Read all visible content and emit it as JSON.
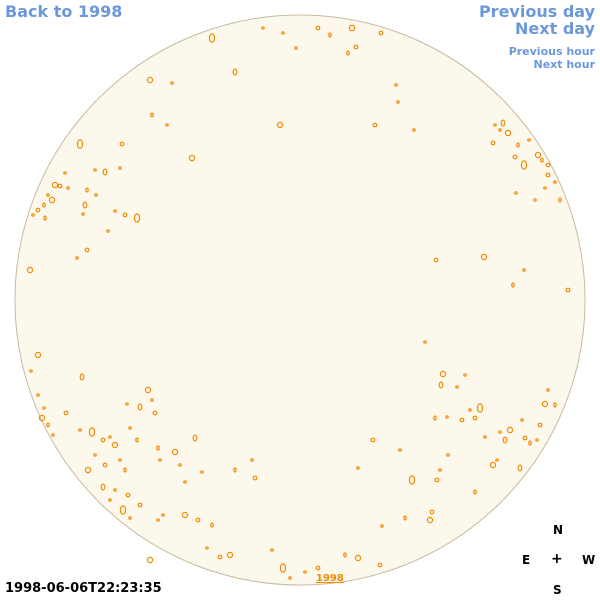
{
  "nav": {
    "back_label": "Back to 1998",
    "prev_day_label": "Previous day",
    "next_day_label": "Next day",
    "prev_hour_label": "Previous hour",
    "next_hour_label": "Next hour"
  },
  "timestamp": "1998-06-06T22:23:35",
  "year_label": "1998",
  "compass": {
    "n": "N",
    "e": "E",
    "center": "+",
    "w": "W",
    "s": "S"
  },
  "colors": {
    "disk_fill": "#fdf8ec",
    "disk_stroke": "#c7b9a0",
    "feature": "#f28a00",
    "link": "#6c98db"
  }
}
